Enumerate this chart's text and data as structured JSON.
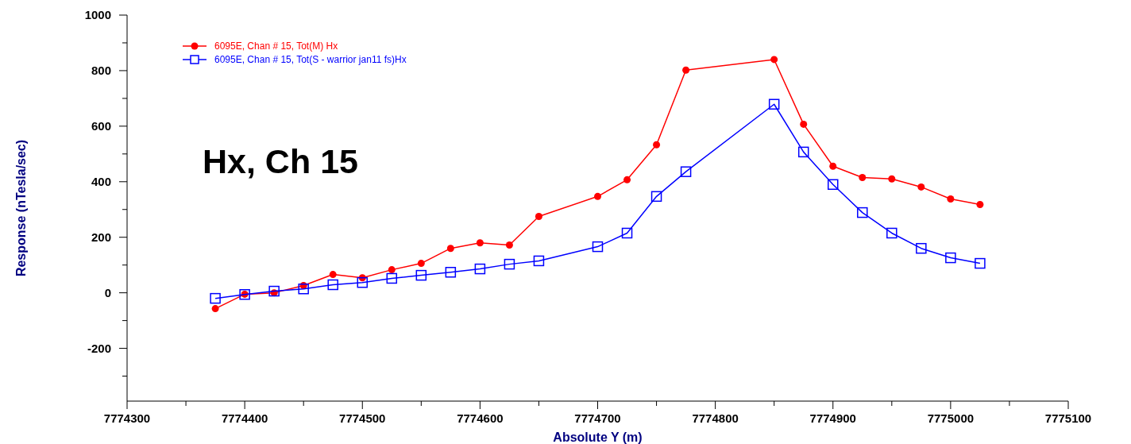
{
  "chart_data": {
    "type": "line",
    "xlabel": "Absolute Y (m)",
    "ylabel": "Response (nTesla/sec)",
    "annotations": [
      "Hx, Ch 15"
    ],
    "x": [
      7774375,
      7774400,
      7774425,
      7774450,
      7774475,
      7774500,
      7774525,
      7774550,
      7774575,
      7774600,
      7774625,
      7774650,
      7774700,
      7774725,
      7774750,
      7774775,
      7774850,
      7774875,
      7774900,
      7774925,
      7774950,
      7774975,
      7775000,
      7775025
    ],
    "series": [
      {
        "name": "6095E, Chan # 15, Tot(M) Hx",
        "color": "#ff0000",
        "marker": "circle",
        "values": [
          -57,
          -5,
          0,
          26,
          66,
          54,
          83,
          106,
          160,
          180,
          172,
          275,
          347,
          407,
          533,
          802,
          840,
          607,
          456,
          415,
          410,
          381,
          338,
          318
        ]
      },
      {
        "name": "6095E, Chan # 15, Tot(S - warrior jan11 fs)Hx",
        "color": "#0000ff",
        "marker": "square",
        "values": [
          -20,
          -6,
          6,
          14,
          29,
          37,
          52,
          63,
          74,
          86,
          103,
          115,
          166,
          215,
          347,
          436,
          679,
          507,
          390,
          289,
          215,
          160,
          126,
          106
        ]
      }
    ],
    "xlim": [
      7774300,
      7775100
    ],
    "xticks": [
      7774300,
      {
        "value": 7774350,
        "label": null
      },
      7774400,
      {
        "value": 7774450,
        "label": null
      },
      7774500,
      {
        "value": 7774550,
        "label": null
      },
      7774600,
      {
        "value": 7774650,
        "label": null
      },
      7774700,
      {
        "value": 7774750,
        "label": null
      },
      7774800,
      {
        "value": 7774850,
        "label": null
      },
      7774900,
      {
        "value": 7774950,
        "label": null
      },
      7775000,
      {
        "value": 7775050,
        "label": null
      },
      7775100
    ],
    "ylim": [
      -390,
      1000
    ],
    "yticks": [
      {
        "value": -300,
        "label": null
      },
      -200,
      {
        "value": -100,
        "label": null
      },
      0,
      {
        "value": 100,
        "label": null
      },
      200,
      {
        "value": 300,
        "label": null
      },
      400,
      {
        "value": 500,
        "label": null
      },
      600,
      {
        "value": 700,
        "label": null
      },
      800,
      {
        "value": 900,
        "label": null
      },
      1000
    ],
    "grid": false,
    "legend": "top left",
    "line_style": "solid"
  }
}
